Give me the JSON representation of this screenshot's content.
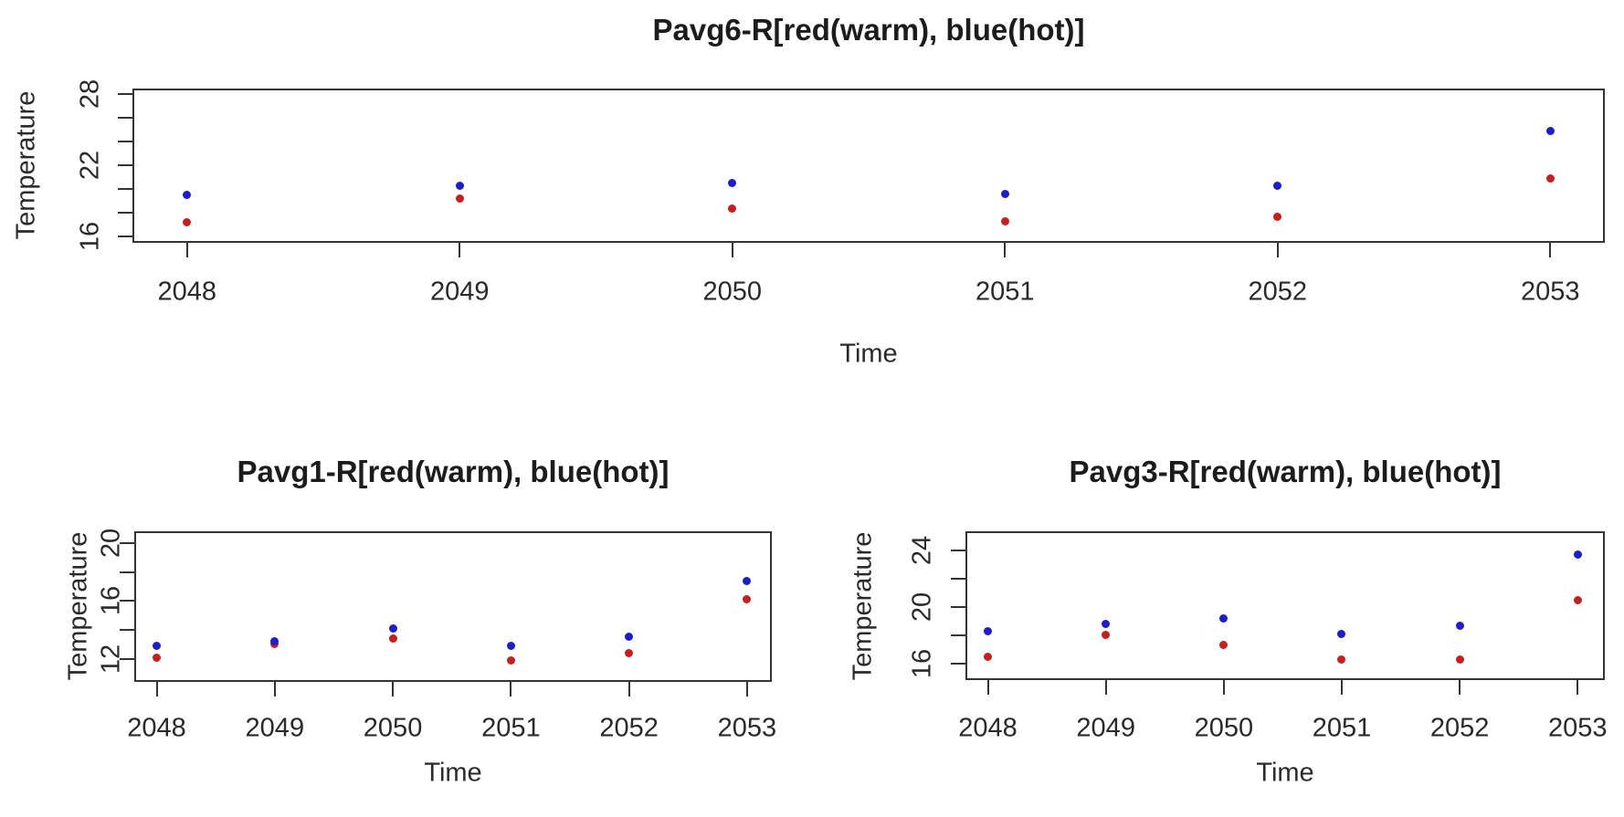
{
  "figure": {
    "background": "#ffffff",
    "description_colors": {
      "warm_points": "#c42020",
      "hot_points": "#1e1ec8",
      "axis_lines": "#343434"
    }
  },
  "chart_data": [
    {
      "id": "pavg6",
      "type": "scatter",
      "title": "Pavg6-R[red(warm), blue(hot)]",
      "xlabel": "Time",
      "ylabel": "Temperature",
      "x": [
        2048,
        2049,
        2050,
        2051,
        2052,
        2053
      ],
      "x_ticks": [
        2048,
        2049,
        2050,
        2051,
        2052,
        2053
      ],
      "y_ticks": [
        16,
        18,
        20,
        22,
        24,
        26,
        28
      ],
      "y_labeled_ticks": [
        16,
        22,
        28
      ],
      "xlim": [
        2047.8,
        2053.2
      ],
      "ylim": [
        15.5,
        28.45
      ],
      "grid": false,
      "legend_position": "none",
      "series": [
        {
          "name": "warm",
          "color": "#c42020",
          "values": [
            17.2,
            19.2,
            18.4,
            17.3,
            17.7,
            20.9
          ]
        },
        {
          "name": "hot",
          "color": "#1e1ec8",
          "values": [
            19.5,
            20.3,
            20.5,
            19.6,
            20.3,
            24.9
          ]
        }
      ]
    },
    {
      "id": "pavg1",
      "type": "scatter",
      "title": "Pavg1-R[red(warm), blue(hot)]",
      "xlabel": "Time",
      "ylabel": "Temperature",
      "x": [
        2048,
        2049,
        2050,
        2051,
        2052,
        2053
      ],
      "x_ticks": [
        2048,
        2049,
        2050,
        2051,
        2052,
        2053
      ],
      "y_ticks": [
        12,
        14,
        16,
        18,
        20
      ],
      "y_labeled_ticks": [
        12,
        16,
        20
      ],
      "xlim": [
        2047.81,
        2053.21
      ],
      "ylim": [
        10.4,
        20.81
      ],
      "grid": false,
      "legend_position": "none",
      "series": [
        {
          "name": "warm",
          "color": "#c42020",
          "values": [
            12.1,
            13.0,
            13.4,
            11.9,
            12.4,
            16.1
          ]
        },
        {
          "name": "hot",
          "color": "#1e1ec8",
          "values": [
            12.9,
            13.2,
            14.1,
            12.9,
            13.5,
            17.4
          ]
        }
      ]
    },
    {
      "id": "pavg3",
      "type": "scatter",
      "title": "Pavg3-R[red(warm), blue(hot)]",
      "xlabel": "Time",
      "ylabel": "Temperature",
      "x": [
        2048,
        2049,
        2050,
        2051,
        2052,
        2053
      ],
      "x_ticks": [
        2048,
        2049,
        2050,
        2051,
        2052,
        2053
      ],
      "y_ticks": [
        16,
        18,
        20,
        22,
        24
      ],
      "y_labeled_ticks": [
        16,
        20,
        24
      ],
      "xlim": [
        2047.81,
        2053.23
      ],
      "ylim": [
        14.84,
        25.35
      ],
      "grid": false,
      "legend_position": "none",
      "series": [
        {
          "name": "warm",
          "color": "#c42020",
          "values": [
            16.5,
            18.0,
            17.3,
            16.3,
            16.3,
            20.5
          ]
        },
        {
          "name": "hot",
          "color": "#1e1ec8",
          "values": [
            18.3,
            18.8,
            19.2,
            18.1,
            18.7,
            23.7
          ]
        }
      ]
    }
  ]
}
